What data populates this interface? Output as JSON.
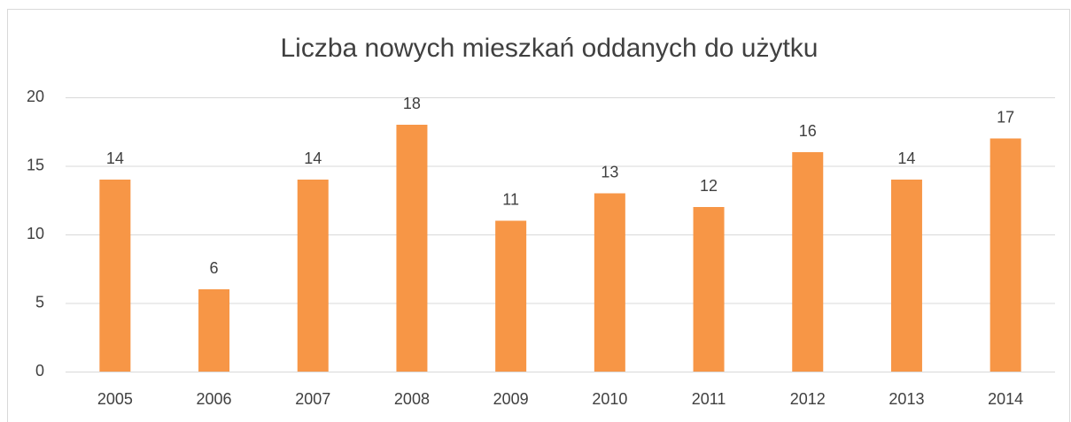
{
  "chart_data": {
    "type": "bar",
    "title": "Liczba nowych mieszkań oddanych do użytku",
    "categories": [
      "2005",
      "2006",
      "2007",
      "2008",
      "2009",
      "2010",
      "2011",
      "2012",
      "2013",
      "2014"
    ],
    "values": [
      14,
      6,
      14,
      18,
      11,
      13,
      12,
      16,
      14,
      17
    ],
    "color": "#f79646",
    "ylim": [
      0,
      20
    ],
    "yticks": [
      0,
      5,
      10,
      15,
      20
    ],
    "grid": true
  }
}
